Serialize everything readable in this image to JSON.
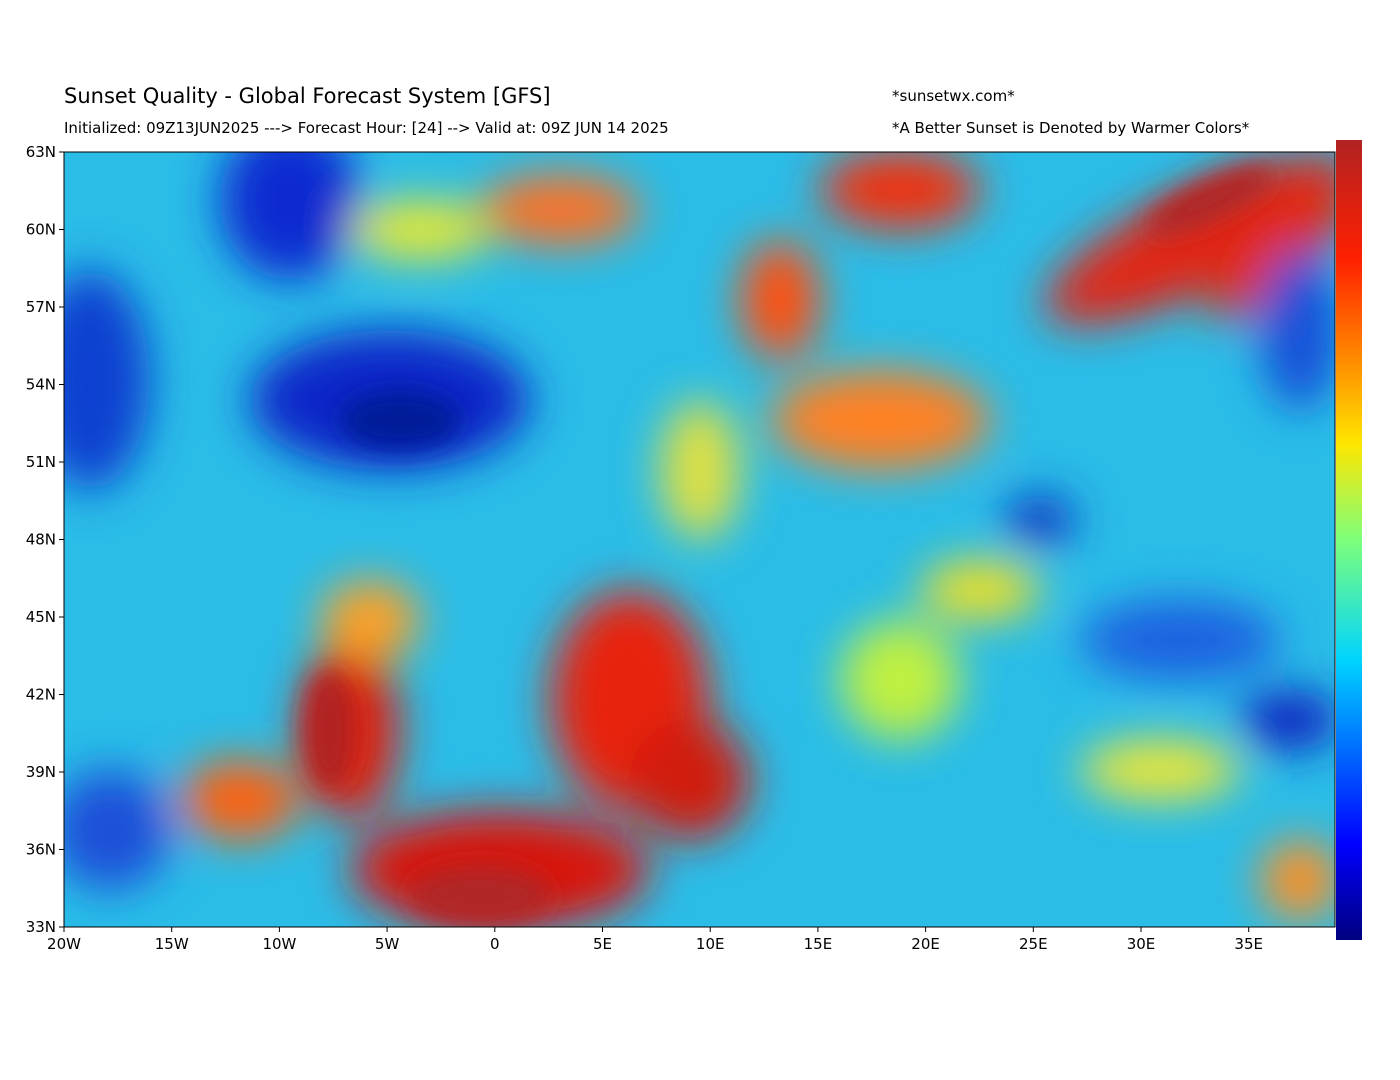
{
  "header": {
    "title": "Sunset Quality - Global Forecast System [GFS]",
    "subtitle": "Initialized: 09Z13JUN2025 ---> Forecast Hour: [24] --> Valid at: 09Z  JUN 14 2025",
    "site": "*sunsetwx.com*",
    "note": "*A Better Sunset is Denoted by Warmer Colors*"
  },
  "map": {
    "lat_labels": [
      "63N",
      "60N",
      "57N",
      "54N",
      "51N",
      "48N",
      "45N",
      "42N",
      "39N",
      "36N",
      "33N"
    ],
    "lon_labels": [
      "20W",
      "15W",
      "10W",
      "5W",
      "0",
      "5E",
      "10E",
      "15E",
      "20E",
      "25E",
      "30E",
      "35E"
    ]
  }
}
